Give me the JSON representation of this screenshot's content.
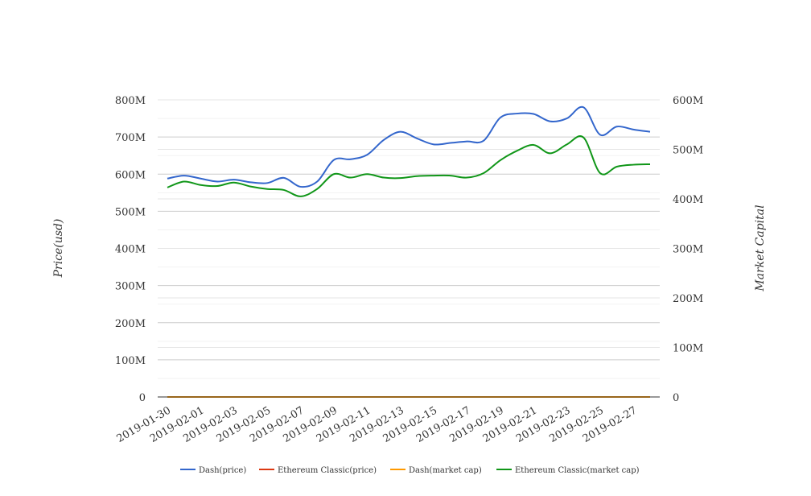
{
  "chart_data": {
    "type": "line",
    "x": [
      "2019-01-30",
      "2019-01-31",
      "2019-02-01",
      "2019-02-02",
      "2019-02-03",
      "2019-02-04",
      "2019-02-05",
      "2019-02-06",
      "2019-02-07",
      "2019-02-08",
      "2019-02-09",
      "2019-02-10",
      "2019-02-11",
      "2019-02-12",
      "2019-02-13",
      "2019-02-14",
      "2019-02-15",
      "2019-02-16",
      "2019-02-17",
      "2019-02-18",
      "2019-02-19",
      "2019-02-20",
      "2019-02-21",
      "2019-02-22",
      "2019-02-23",
      "2019-02-24",
      "2019-02-25",
      "2019-02-26",
      "2019-02-27",
      "2019-02-28"
    ],
    "x_tick_labels": [
      "2019-01-30",
      "2019-02-01",
      "2019-02-03",
      "2019-02-05",
      "2019-02-07",
      "2019-02-09",
      "2019-02-11",
      "2019-02-13",
      "2019-02-15",
      "2019-02-17",
      "2019-02-19",
      "2019-02-21",
      "2019-02-23",
      "2019-02-25",
      "2019-02-27"
    ],
    "y_left": {
      "label": "Price(usd)",
      "ticks": [
        "0",
        "100M",
        "200M",
        "300M",
        "400M",
        "500M",
        "600M",
        "700M",
        "800M"
      ],
      "range": [
        0,
        800000000
      ]
    },
    "y_right": {
      "label": "Market Capital",
      "ticks": [
        "0",
        "100M",
        "200M",
        "300M",
        "400M",
        "500M",
        "600M"
      ],
      "range": [
        0,
        600000000
      ]
    },
    "grid": true,
    "legend_position": "bottom",
    "series": [
      {
        "name": "Dash(price)",
        "axis": "left",
        "color": "#3366cc",
        "values": [
          588,
          596,
          588,
          580,
          585,
          578,
          576,
          590,
          566,
          580,
          638,
          640,
          652,
          692,
          714,
          696,
          680,
          684,
          688,
          690,
          752,
          763,
          762,
          742,
          750,
          780,
          706,
          728,
          720,
          714
        ],
        "unit_scale": 1000000
      },
      {
        "name": "Ethereum Classic(price)",
        "axis": "left",
        "color": "#dc3912",
        "values": [
          0,
          0,
          0,
          0,
          0,
          0,
          0,
          0,
          0,
          0,
          0,
          0,
          0,
          0,
          0,
          0,
          0,
          0,
          0,
          0,
          0,
          0,
          0,
          0,
          0,
          0,
          0,
          0,
          0,
          0
        ],
        "unit_scale": 1000000
      },
      {
        "name": "Dash(market cap)",
        "axis": "right",
        "color": "#ff9900",
        "values": [
          0,
          0,
          0,
          0,
          0,
          0,
          0,
          0,
          0,
          0,
          0,
          0,
          0,
          0,
          0,
          0,
          0,
          0,
          0,
          0,
          0,
          0,
          0,
          0,
          0,
          0,
          0,
          0,
          0,
          0
        ],
        "unit_scale": 1000000
      },
      {
        "name": "Ethereum Classic(market cap)",
        "axis": "right",
        "color": "#109618",
        "values": [
          423,
          435,
          428,
          426,
          433,
          425,
          420,
          418,
          405,
          420,
          450,
          443,
          450,
          443,
          442,
          446,
          447,
          447,
          443,
          452,
          478,
          497,
          509,
          492,
          510,
          524,
          452,
          465,
          469,
          470
        ],
        "unit_scale": 1000000
      }
    ]
  }
}
